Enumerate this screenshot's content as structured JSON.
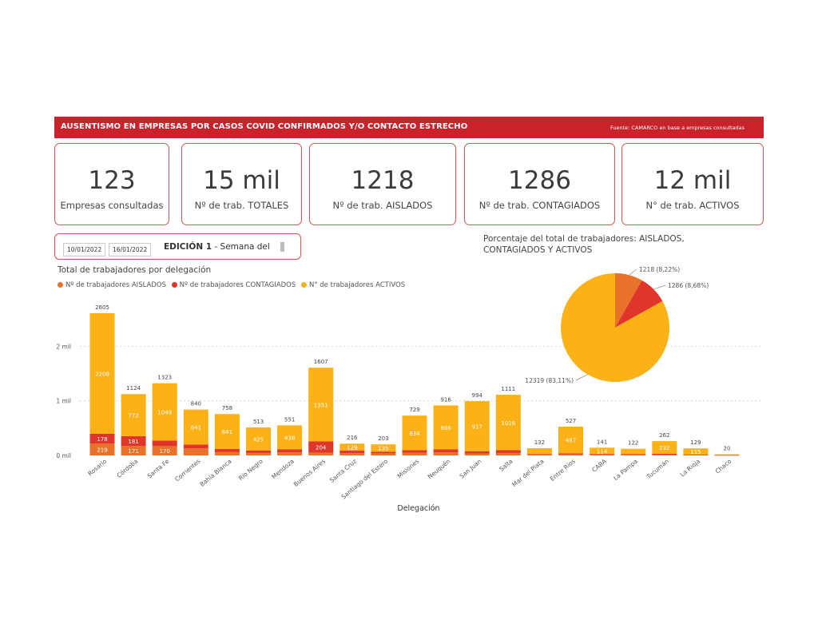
{
  "banner": {
    "title": "AUSENTISMO EN EMPRESAS POR CASOS COVID CONFIRMADOS Y/O CONTACTO ESTRECHO",
    "source": "Fuente: CAMARCO en base a empresas consultadas"
  },
  "kpis": [
    {
      "value": "123",
      "label": "Empresas consultadas"
    },
    {
      "value": "15 mil",
      "label": "Nº de trab. TOTALES"
    },
    {
      "value": "1218",
      "label": "Nº de trab. AISLADOS"
    },
    {
      "value": "1286",
      "label": "Nº de trab. CONTAGIADOS"
    },
    {
      "value": "12 mil",
      "label": "N° de trab. ACTIVOS"
    }
  ],
  "slicer": {
    "date_from": "10/01/2022",
    "date_to": "16/01/2022",
    "edition_label": "EDICIÓN 1",
    "edition_suffix": " - Semana del"
  },
  "colors": {
    "aislados": "#e8722a",
    "contagiados": "#e0352b",
    "activos": "#fcb116",
    "banner": "#c8232b"
  },
  "chart_data": [
    {
      "type": "bar",
      "stacked": true,
      "title": "Total de trabajadores por delegación",
      "xlabel": "Delegación",
      "ylabel": "",
      "yticks": [
        "0 mil",
        "1 mil",
        "2 mil"
      ],
      "ylim": [
        0,
        2605
      ],
      "legend": "top-left",
      "categories": [
        "Rosario",
        "Córdoba",
        "Santa Fe",
        "Corrientes",
        "Bahía Blanca",
        "Río Negro",
        "Mendoza",
        "Buenos Aires",
        "Santa Cruz",
        "Santiago del Estero",
        "Misiones",
        "Neuquén",
        "San Juan",
        "Salta",
        "Mar del Plata",
        "Entre Ríos",
        "CABA",
        "La Pampa",
        "Tucumán",
        "La Rioja",
        "Chaco"
      ],
      "totals": [
        2605,
        1124,
        1323,
        840,
        758,
        513,
        551,
        1607,
        216,
        203,
        729,
        916,
        994,
        1111,
        132,
        527,
        141,
        122,
        262,
        129,
        20
      ],
      "series": [
        {
          "name": "Nº de trabajadores AISLADOS",
          "values": [
            219,
            171,
            170,
            130,
            60,
            45,
            55,
            52,
            40,
            38,
            50,
            55,
            37,
            45,
            10,
            20,
            15,
            10,
            15,
            8,
            5
          ]
        },
        {
          "name": "Nº de trabajadores CONTAGIADOS",
          "values": [
            178,
            181,
            104,
            69,
            57,
            43,
            58,
            204,
            47,
            30,
            45,
            55,
            40,
            50,
            12,
            20,
            12,
            12,
            15,
            6,
            5
          ]
        },
        {
          "name": "N° de trabajadores ACTIVOS",
          "values": [
            2208,
            772,
            1049,
            641,
            641,
            425,
            438,
            1351,
            129,
            135,
            634,
            806,
            917,
            1016,
            110,
            487,
            114,
            100,
            232,
            115,
            10
          ]
        }
      ],
      "segment_labels": [
        [
          "219",
          "178",
          "2208"
        ],
        [
          "171",
          "181",
          "772"
        ],
        [
          "170",
          "",
          "1049"
        ],
        [
          "",
          "",
          "641"
        ],
        [
          "",
          "",
          "641"
        ],
        [
          "",
          "",
          "425"
        ],
        [
          "",
          "",
          "438"
        ],
        [
          "",
          "204",
          "1351"
        ],
        [
          "",
          "",
          "129"
        ],
        [
          "",
          "",
          "135"
        ],
        [
          "",
          "",
          "634"
        ],
        [
          "",
          "",
          "806"
        ],
        [
          "",
          "",
          "917"
        ],
        [
          "",
          "",
          "1016"
        ],
        [
          "",
          "",
          ""
        ],
        [
          "",
          "",
          "487"
        ],
        [
          "",
          "",
          "114"
        ],
        [
          "",
          "",
          ""
        ],
        [
          "",
          "",
          "232"
        ],
        [
          "",
          "",
          "115"
        ],
        [
          "",
          "",
          ""
        ]
      ]
    },
    {
      "type": "pie",
      "title": "Porcentaje del total de trabajadores: AISLADOS, CONTAGIADOS Y ACTIVOS",
      "categories": [
        "AISLADOS",
        "CONTAGIADOS",
        "ACTIVOS"
      ],
      "values": [
        1218,
        1286,
        12319
      ],
      "labels": [
        "1218 (8,22%)",
        "1286 (8,68%)",
        "12319 (83,11%)"
      ]
    }
  ]
}
